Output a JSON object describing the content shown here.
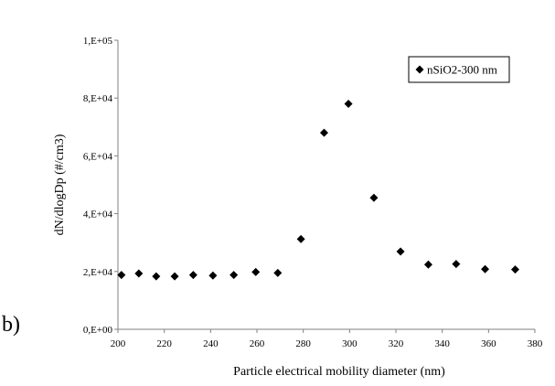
{
  "panel_label": "b)",
  "chart_data": {
    "type": "scatter",
    "title": "",
    "xlabel": "Particle electrical mobility diameter (nm)",
    "ylabel": "dN/dlogDp (#/cm3)",
    "xlim": [
      200,
      380
    ],
    "ylim": [
      0,
      100000
    ],
    "xticks": [
      200,
      220,
      240,
      260,
      280,
      300,
      320,
      340,
      360,
      380
    ],
    "yticks": [
      0,
      20000,
      40000,
      60000,
      80000,
      100000
    ],
    "ytick_labels": [
      "0,E+00",
      "2,E+04",
      "4,E+04",
      "6,E+04",
      "8,E+04",
      "1,E+05"
    ],
    "grid": false,
    "legend_position": "top-right",
    "marker": "diamond",
    "marker_color": "#000000",
    "series": [
      {
        "name": "nSiO2-300 nm",
        "x": [
          201.5,
          209.0,
          216.5,
          224.5,
          232.5,
          241.0,
          250.0,
          259.5,
          269.0,
          279.0,
          289.0,
          299.5,
          310.5,
          322.0,
          334.0,
          346.0,
          358.5,
          371.5
        ],
        "y": [
          18800,
          19300,
          18300,
          18300,
          18800,
          18600,
          18800,
          19800,
          19500,
          31200,
          68000,
          78000,
          45500,
          26900,
          22400,
          22600,
          20800,
          20700
        ]
      }
    ]
  }
}
